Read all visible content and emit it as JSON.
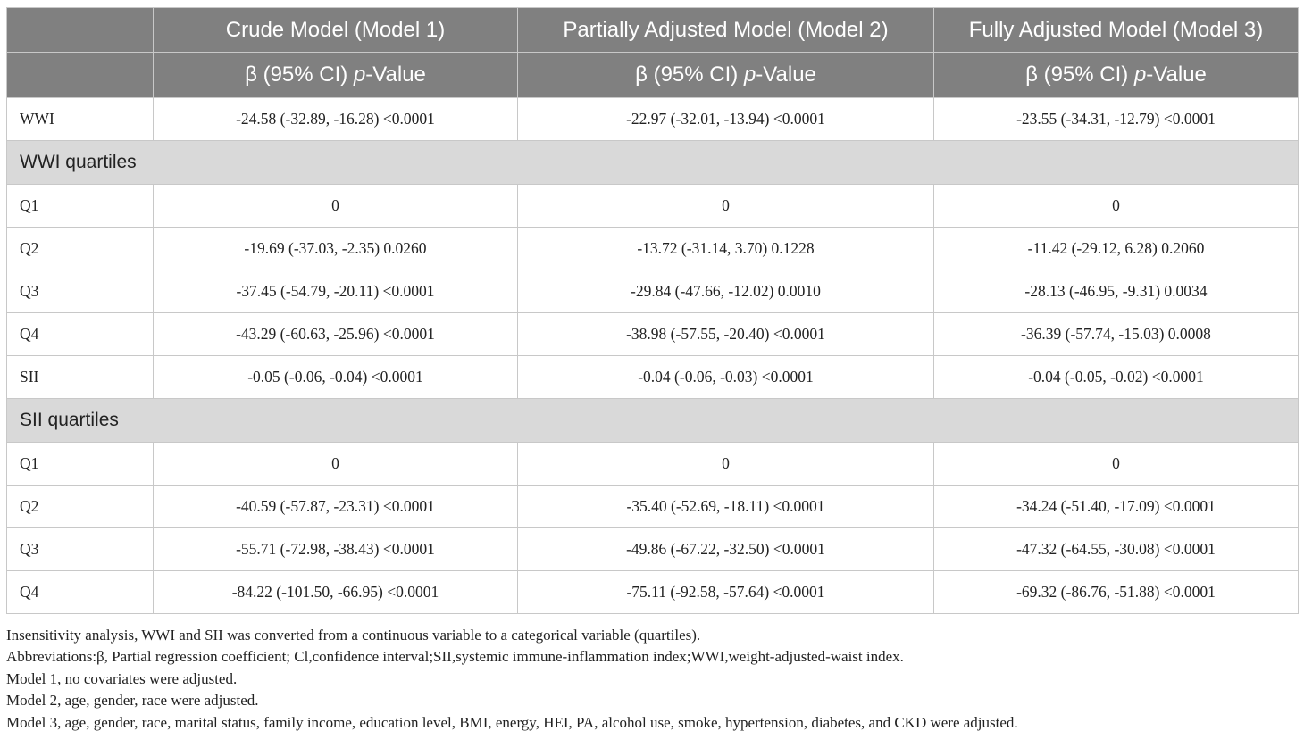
{
  "header": {
    "col0": "",
    "model1_title": "Crude Model (Model 1)",
    "model2_title": "Partially Adjusted Model (Model 2)",
    "model3_title": "Fully Adjusted Model (Model 3)",
    "sub_beta": "β (95% CI) ",
    "sub_p": "p",
    "sub_value": "-Value"
  },
  "rows": {
    "wwi": {
      "label": "WWI",
      "m1": "-24.58 (-32.89, -16.28) <0.0001",
      "m2": "-22.97 (-32.01, -13.94) <0.0001",
      "m3": "-23.55 (-34.31, -12.79) <0.0001"
    },
    "wwi_quartiles": "WWI quartiles",
    "wwi_q1": {
      "label": "Q1",
      "m1": "0",
      "m2": "0",
      "m3": "0"
    },
    "wwi_q2": {
      "label": "Q2",
      "m1": "-19.69 (-37.03, -2.35) 0.0260",
      "m2": "-13.72 (-31.14, 3.70) 0.1228",
      "m3": "-11.42 (-29.12, 6.28) 0.2060"
    },
    "wwi_q3": {
      "label": "Q3",
      "m1": "-37.45 (-54.79, -20.11) <0.0001",
      "m2": "-29.84 (-47.66, -12.02) 0.0010",
      "m3": "-28.13 (-46.95, -9.31) 0.0034"
    },
    "wwi_q4": {
      "label": "Q4",
      "m1": "-43.29 (-60.63, -25.96) <0.0001",
      "m2": "-38.98 (-57.55, -20.40) <0.0001",
      "m3": "-36.39 (-57.74, -15.03) 0.0008"
    },
    "sii": {
      "label": "SII",
      "m1": "-0.05 (-0.06, -0.04) <0.0001",
      "m2": "-0.04 (-0.06, -0.03) <0.0001",
      "m3": "-0.04 (-0.05, -0.02) <0.0001"
    },
    "sii_quartiles": "SII quartiles",
    "sii_q1": {
      "label": "Q1",
      "m1": "0",
      "m2": "0",
      "m3": "0"
    },
    "sii_q2": {
      "label": "Q2",
      "m1": "-40.59 (-57.87, -23.31) <0.0001",
      "m2": "-35.40 (-52.69, -18.11) <0.0001",
      "m3": "-34.24 (-51.40, -17.09) <0.0001"
    },
    "sii_q3": {
      "label": "Q3",
      "m1": "-55.71 (-72.98, -38.43) <0.0001",
      "m2": "-49.86 (-67.22, -32.50) <0.0001",
      "m3": "-47.32 (-64.55, -30.08) <0.0001"
    },
    "sii_q4": {
      "label": "Q4",
      "m1": "-84.22 (-101.50, -66.95) <0.0001",
      "m2": "-75.11 (-92.58, -57.64) <0.0001",
      "m3": "-69.32 (-86.76, -51.88) <0.0001"
    }
  },
  "footnotes": {
    "note1": "Insensitivity analysis, WWI and SII was converted from a continuous variable to a categorical variable (quartiles).",
    "note2": "Abbreviations:β, Partial regression coefficient; Cl,confidence interval;SII,systemic immune-inflammation index;WWI,weight-adjusted-waist index.",
    "note3": "Model 1, no covariates were adjusted.",
    "note4": "Model 2, age, gender, race were adjusted.",
    "note5": "Model 3, age, gender, race, marital status, family income, education level, BMI, energy, HEI, PA, alcohol use, smoke, hypertension, diabetes, and CKD were adjusted."
  }
}
